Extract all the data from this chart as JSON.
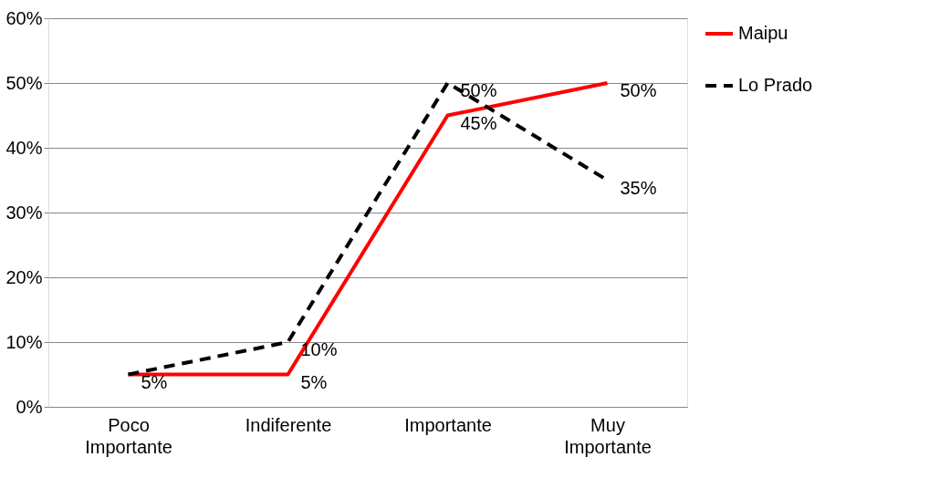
{
  "chart_data": {
    "type": "line",
    "categories": [
      "Poco Importante",
      "Indiferente",
      "Importante",
      "Muy Importante"
    ],
    "series": [
      {
        "name": "Maipu",
        "color": "#ff0000",
        "line_style": "solid",
        "values": [
          5,
          5,
          45,
          50
        ],
        "value_labels": [
          "5%",
          "5%",
          "45%",
          "50%"
        ]
      },
      {
        "name": "Lo Prado",
        "color": "#000000",
        "line_style": "dashed",
        "values": [
          5,
          10,
          50,
          35
        ],
        "value_labels": [
          null,
          "10%",
          "50%",
          "35%"
        ]
      }
    ],
    "ylim": [
      0,
      60
    ],
    "yticks": [
      {
        "value": 0,
        "label": "0%"
      },
      {
        "value": 10,
        "label": "10%"
      },
      {
        "value": 20,
        "label": "20%"
      },
      {
        "value": 30,
        "label": "30%"
      },
      {
        "value": 40,
        "label": "40%"
      },
      {
        "value": 50,
        "label": "50%"
      },
      {
        "value": 60,
        "label": "60%"
      }
    ],
    "grid": "y",
    "legend": "right",
    "marker": "none"
  }
}
